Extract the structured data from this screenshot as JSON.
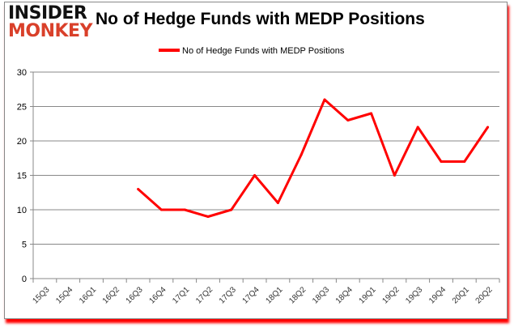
{
  "logo": {
    "line1": "INSIDER",
    "line2": "MONKEY"
  },
  "chart_data": {
    "type": "line",
    "title": "No of Hedge Funds with MEDP Positions",
    "categories": [
      "15Q3",
      "15Q4",
      "16Q1",
      "16Q2",
      "16Q3",
      "16Q4",
      "17Q1",
      "17Q2",
      "17Q3",
      "17Q4",
      "18Q1",
      "18Q2",
      "18Q3",
      "18Q4",
      "19Q1",
      "19Q2",
      "19Q3",
      "19Q4",
      "20Q1",
      "20Q2"
    ],
    "series": [
      {
        "name": "No of Hedge Funds with MEDP Positions",
        "color": "#ff0000",
        "values": [
          null,
          null,
          null,
          null,
          13,
          10,
          10,
          9,
          10,
          15,
          11,
          18,
          26,
          23,
          24,
          15,
          22,
          17,
          17,
          22
        ]
      }
    ],
    "ylim": [
      0,
      30
    ],
    "yticks": [
      0,
      5,
      10,
      15,
      20,
      25,
      30
    ],
    "grid": true,
    "legend": "top"
  }
}
